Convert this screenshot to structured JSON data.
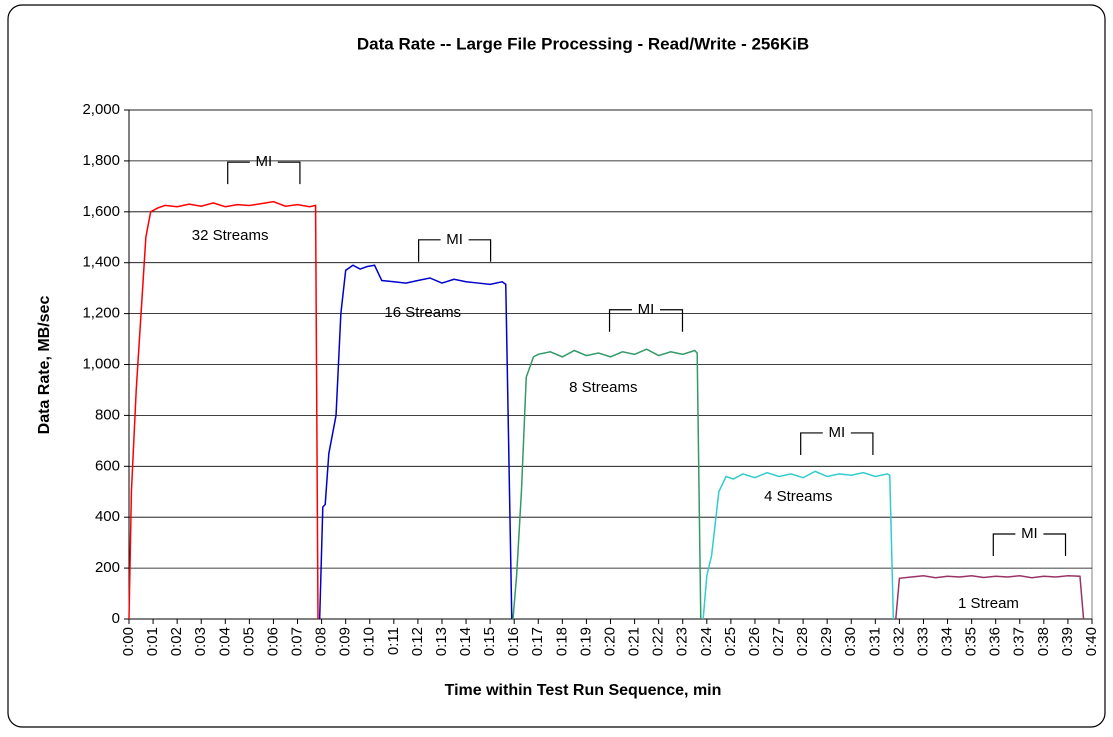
{
  "chart_data": {
    "type": "line",
    "title": "Data Rate -- Large File Processing - Read/Write - 256KiB",
    "xlabel": "Time within Test Run Sequence, min",
    "ylabel": "Data Rate, MB/sec",
    "xlim": [
      0,
      40
    ],
    "ylim": [
      0,
      2000
    ],
    "grid": true,
    "yticks": [
      0,
      200,
      400,
      600,
      800,
      {
        "value": 1000,
        "label": "1,000"
      },
      {
        "value": 1200,
        "label": "1,200"
      },
      {
        "value": 1400,
        "label": "1,400"
      },
      {
        "value": 1600,
        "label": "1,600"
      },
      {
        "value": 1800,
        "label": "1,800"
      },
      {
        "value": 2000,
        "label": "2,000"
      }
    ],
    "xticks": [
      {
        "value": 0,
        "label": "0:00"
      },
      {
        "value": 1,
        "label": "0:01"
      },
      {
        "value": 2,
        "label": "0:02"
      },
      {
        "value": 3,
        "label": "0:03"
      },
      {
        "value": 4,
        "label": "0:04"
      },
      {
        "value": 5,
        "label": "0:05"
      },
      {
        "value": 6,
        "label": "0:06"
      },
      {
        "value": 7,
        "label": "0:07"
      },
      {
        "value": 8,
        "label": "0:08"
      },
      {
        "value": 9,
        "label": "0:09"
      },
      {
        "value": 10,
        "label": "0:10"
      },
      {
        "value": 11,
        "label": "0:11"
      },
      {
        "value": 12,
        "label": "0:12"
      },
      {
        "value": 13,
        "label": "0:13"
      },
      {
        "value": 14,
        "label": "0:14"
      },
      {
        "value": 15,
        "label": "0:15"
      },
      {
        "value": 16,
        "label": "0:16"
      },
      {
        "value": 17,
        "label": "0:17"
      },
      {
        "value": 18,
        "label": "0:18"
      },
      {
        "value": 19,
        "label": "0:19"
      },
      {
        "value": 20,
        "label": "0:20"
      },
      {
        "value": 21,
        "label": "0:21"
      },
      {
        "value": 22,
        "label": "0:22"
      },
      {
        "value": 23,
        "label": "0:23"
      },
      {
        "value": 24,
        "label": "0:24"
      },
      {
        "value": 25,
        "label": "0:25"
      },
      {
        "value": 26,
        "label": "0:26"
      },
      {
        "value": 27,
        "label": "0:27"
      },
      {
        "value": 28,
        "label": "0:28"
      },
      {
        "value": 29,
        "label": "0:29"
      },
      {
        "value": 30,
        "label": "0:30"
      },
      {
        "value": 31,
        "label": "0:31"
      },
      {
        "value": 32,
        "label": "0:32"
      },
      {
        "value": 33,
        "label": "0:33"
      },
      {
        "value": 34,
        "label": "0:34"
      },
      {
        "value": 35,
        "label": "0:35"
      },
      {
        "value": 36,
        "label": "0:36"
      },
      {
        "value": 37,
        "label": "0:37"
      },
      {
        "value": 38,
        "label": "0:38"
      },
      {
        "value": 39,
        "label": "0:39"
      },
      {
        "value": 40,
        "label": "0:40"
      }
    ],
    "series": [
      {
        "name": "32 Streams",
        "color": "#ff0000",
        "x": [
          0,
          0.1,
          0.3,
          0.5,
          0.7,
          0.9,
          1.2,
          1.5,
          2,
          2.5,
          3,
          3.5,
          4,
          4.5,
          5,
          5.5,
          6,
          6.5,
          7,
          7.5,
          7.75,
          7.85
        ],
        "values": [
          0,
          500,
          900,
          1200,
          1500,
          1600,
          1615,
          1625,
          1620,
          1630,
          1622,
          1635,
          1620,
          1628,
          1625,
          1632,
          1640,
          1622,
          1628,
          1620,
          1625,
          0
        ]
      },
      {
        "name": "16 Streams",
        "color": "#0000cc",
        "x": [
          7.92,
          8.05,
          8.15,
          8.3,
          8.6,
          8.8,
          9.0,
          9.3,
          9.6,
          9.9,
          10.2,
          10.5,
          11,
          11.5,
          12,
          12.5,
          13,
          13.5,
          14,
          14.5,
          15,
          15.5,
          15.65,
          15.9
        ],
        "values": [
          0,
          440,
          450,
          650,
          800,
          1200,
          1370,
          1390,
          1375,
          1385,
          1390,
          1330,
          1325,
          1320,
          1330,
          1340,
          1320,
          1335,
          1325,
          1320,
          1315,
          1325,
          1315,
          0
        ]
      },
      {
        "name": "8 Streams",
        "color": "#339966",
        "x": [
          15.95,
          16.1,
          16.3,
          16.5,
          16.8,
          17,
          17.5,
          18,
          18.5,
          19,
          19.5,
          20,
          20.5,
          21,
          21.5,
          22,
          22.5,
          23,
          23.5,
          23.6,
          23.75
        ],
        "values": [
          0,
          170,
          500,
          950,
          1030,
          1040,
          1050,
          1030,
          1055,
          1035,
          1045,
          1030,
          1050,
          1040,
          1060,
          1035,
          1050,
          1040,
          1055,
          1045,
          0
        ]
      },
      {
        "name": "4 Streams",
        "color": "#33cccc",
        "x": [
          23.85,
          24.0,
          24.2,
          24.5,
          24.8,
          25.1,
          25.5,
          26,
          26.5,
          27,
          27.5,
          28,
          28.5,
          29,
          29.5,
          30,
          30.5,
          31,
          31.5,
          31.6,
          31.75
        ],
        "values": [
          0,
          170,
          250,
          500,
          560,
          550,
          570,
          555,
          575,
          560,
          570,
          555,
          580,
          560,
          570,
          565,
          575,
          560,
          570,
          565,
          0
        ]
      },
      {
        "name": "1 Stream",
        "color": "#993366",
        "x": [
          31.85,
          32.0,
          32.5,
          33,
          33.5,
          34,
          34.5,
          35,
          35.5,
          36,
          36.5,
          37,
          37.5,
          38,
          38.5,
          39,
          39.5,
          39.65
        ],
        "values": [
          0,
          160,
          165,
          170,
          162,
          168,
          165,
          170,
          163,
          168,
          165,
          170,
          162,
          168,
          165,
          170,
          168,
          0
        ]
      }
    ],
    "annotations": [
      "MI",
      "MI",
      "MI",
      "MI",
      "MI"
    ]
  }
}
